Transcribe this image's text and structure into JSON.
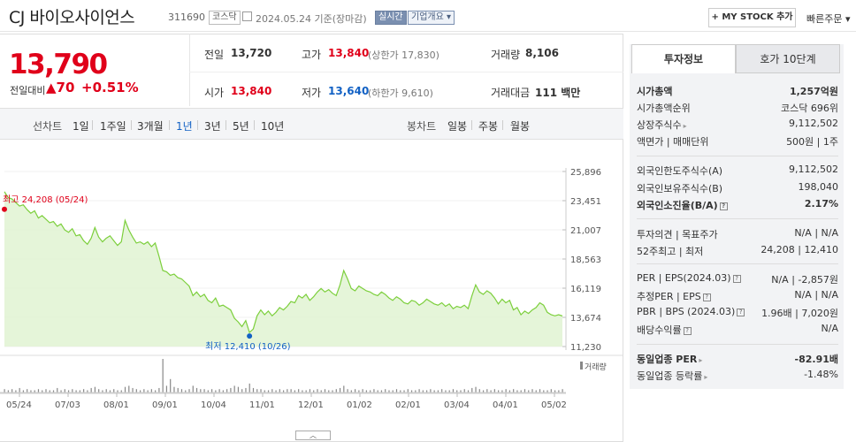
{
  "header": {
    "title": "CJ 바이오사이언스",
    "code": "311690",
    "market_badge": "코스닥",
    "date_text": "2024.05.24  기준(장마감)",
    "realtime_badge": "실시간",
    "company_badge": "기업개요",
    "company_arrow": "▾",
    "mystock_button": "+ MY STOCK 추가",
    "quick_order": "빠른주문",
    "quick_order_arrow": "▾"
  },
  "price": {
    "current": "13,790",
    "prev_label": "전일대비",
    "change": "▲70",
    "change_pct": "+0.51%"
  },
  "quote": {
    "prev_close_label": "전일",
    "prev_close": "13,720",
    "high_label": "고가",
    "high": "13,840",
    "upper_limit": "(상한가 17,830)",
    "volume_label": "거래량",
    "volume": "8,106",
    "open_label": "시가",
    "open": "13,840",
    "low_label": "저가",
    "low": "13,640",
    "lower_limit": "(하한가 9,610)",
    "amount_label": "거래대금",
    "amount": "111 백만"
  },
  "periods": {
    "line_label": "선차트",
    "line_items": [
      "1일",
      "1주일",
      "3개월",
      "1년",
      "3년",
      "5년",
      "10년"
    ],
    "active": "1년",
    "candle_label": "봉차트",
    "candle_items": [
      "일봉",
      "주봉",
      "월봉"
    ]
  },
  "tabs": [
    "투자정보",
    "호가 10단계"
  ],
  "invest_info": {
    "market_cap_label": "시가총액",
    "market_cap": "1,257억원",
    "market_cap_rank_label": "시가총액순위",
    "market_cap_rank": "코스닥 696위",
    "shares_label": "상장주식수",
    "shares": "9,112,502",
    "face_label": "액면가 | 매매단위",
    "face": "500원 | 1주",
    "foreign_limit_label": "외국인한도주식수(A)",
    "foreign_limit": "9,112,502",
    "foreign_hold_label": "외국인보유주식수(B)",
    "foreign_hold": "198,040",
    "foreign_ratio_label": "외국인소진율(B/A)",
    "foreign_ratio": "2.17%",
    "opinion_label": "투자의견 | 목표주가",
    "opinion": "N/A | N/A",
    "week52_label": "52주최고 | 최저",
    "week52": "24,208 | 12,410",
    "per_label": "PER | EPS(2024.03)",
    "per": "N/A | -2,857원",
    "est_per_label": "추정PER | EPS",
    "est_per": "N/A | N/A",
    "pbr_label": "PBR | BPS (2024.03)",
    "pbr": "1.96배 | 7,020원",
    "dividend_label": "배당수익률",
    "dividend": "N/A",
    "sector_per_label": "동일업종 PER",
    "sector_per": "-82.91배",
    "sector_rate_label": "동일업종 등락률",
    "sector_rate": "-1.48%"
  },
  "colors": {
    "up": "#e0001a",
    "down": "#1261c4",
    "line": "#7ccf3c",
    "fill": "#dff3cf"
  },
  "chart_data": {
    "type": "area",
    "yticks": [
      "25,896",
      "23,451",
      "21,007",
      "18,563",
      "16,119",
      "13,674",
      "11,230"
    ],
    "ylim": [
      11230,
      25896
    ],
    "xticks": [
      "05/24",
      "07/03",
      "08/01",
      "09/01",
      "10/04",
      "11/01",
      "12/01",
      "01/02",
      "02/01",
      "03/04",
      "04/01",
      "05/02"
    ],
    "high_label": "최고 24,208 (05/24)",
    "low_label": "최저 12,410 (10/26)",
    "volume_legend": "거래량",
    "values": [
      24208,
      23700,
      23600,
      23300,
      23000,
      23100,
      22700,
      22400,
      22600,
      22000,
      22200,
      21900,
      21600,
      21700,
      21300,
      21500,
      21000,
      20800,
      21100,
      20500,
      20600,
      20100,
      19800,
      20300,
      21200,
      20400,
      20000,
      20300,
      20500,
      20100,
      19700,
      20000,
      21800,
      21000,
      20400,
      19900,
      20000,
      19800,
      20000,
      19600,
      19900,
      18800,
      17600,
      17500,
      17200,
      17300,
      17000,
      16900,
      16600,
      16300,
      15500,
      15800,
      15400,
      15600,
      15100,
      14900,
      15300,
      14600,
      14700,
      14500,
      14300,
      13600,
      13300,
      12900,
      13400,
      12410,
      12700,
      13800,
      14300,
      13900,
      14200,
      13800,
      14100,
      14500,
      14300,
      14600,
      15000,
      14900,
      15500,
      15300,
      15600,
      15100,
      15400,
      15800,
      16100,
      15800,
      16000,
      15700,
      15500,
      16400,
      17600,
      16900,
      16100,
      15900,
      16300,
      16100,
      15900,
      15800,
      15600,
      15500,
      15800,
      15600,
      15300,
      15100,
      15400,
      15200,
      14900,
      14800,
      15100,
      15000,
      14700,
      14900,
      15200,
      15000,
      14800,
      14700,
      14900,
      14600,
      14800,
      14400,
      14600,
      14500,
      14700,
      14400,
      15500,
      16400,
      15800,
      15600,
      15900,
      15700,
      15300,
      14800,
      15200,
      14900,
      15100,
      14300,
      14500,
      13900,
      14200,
      14000,
      14300,
      14500,
      14900,
      14700,
      14100,
      13900,
      13800,
      13900,
      13790
    ],
    "volumes": [
      3,
      2,
      3,
      2,
      4,
      2,
      3,
      2,
      2,
      3,
      2,
      3,
      2,
      2,
      4,
      2,
      3,
      2,
      3,
      2,
      2,
      3,
      2,
      4,
      5,
      3,
      2,
      3,
      2,
      3,
      2,
      2,
      5,
      6,
      4,
      3,
      2,
      3,
      2,
      3,
      2,
      4,
      30,
      6,
      12,
      5,
      4,
      3,
      2,
      3,
      6,
      4,
      3,
      3,
      2,
      3,
      2,
      3,
      2,
      3,
      4,
      6,
      5,
      3,
      4,
      8,
      4,
      3,
      3,
      2,
      2,
      3,
      2,
      3,
      2,
      3,
      3,
      2,
      3,
      2,
      2,
      3,
      2,
      3,
      2,
      3,
      2,
      2,
      3,
      4,
      6,
      3,
      2,
      3,
      2,
      3,
      2,
      2,
      3,
      2,
      2,
      3,
      2,
      2,
      3,
      2,
      2,
      3,
      2,
      2,
      3,
      2,
      2,
      3,
      2,
      2,
      3,
      2,
      2,
      3,
      2,
      2,
      3,
      2,
      4,
      5,
      3,
      2,
      3,
      2,
      3,
      2,
      2,
      3,
      2,
      3,
      2,
      2,
      3,
      2,
      3,
      2,
      3,
      2,
      2,
      3,
      2,
      2,
      3
    ]
  }
}
